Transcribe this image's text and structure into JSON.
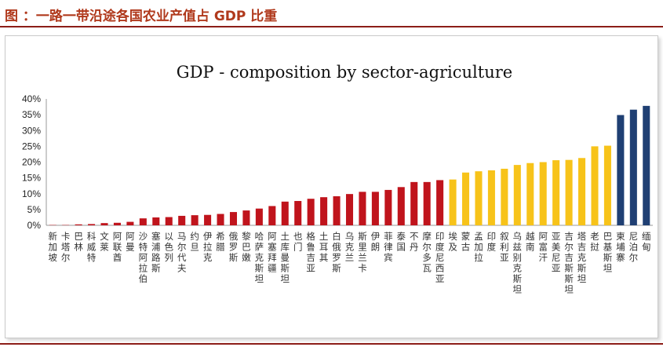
{
  "figure": {
    "caption": "图 ：一路一带沿途各国农业产值占 GDP 比重"
  },
  "colors": {
    "caption": "#b0391c",
    "rule": "#8c1d18",
    "group_red": "#c0141c",
    "group_yellow": "#f7c31a",
    "group_navy": "#1f3f73"
  },
  "chart_data": {
    "type": "bar",
    "title": "GDP - composition by sector-agriculture",
    "xlabel": "",
    "ylabel": "",
    "ylim": [
      0,
      40
    ],
    "yticks": [
      "0%",
      "5%",
      "10%",
      "15%",
      "20%",
      "25%",
      "30%",
      "35%",
      "40%"
    ],
    "grid": false,
    "legend": "none",
    "categories": [
      "新加坡",
      "卡塔尔",
      "巴林",
      "科威特",
      "文莱",
      "阿联酋",
      "阿曼",
      "沙特阿拉伯",
      "塞浦路斯",
      "以色列",
      "马尔代夫",
      "约旦",
      "伊拉克",
      "希腊",
      "俄罗斯",
      "黎巴嫩",
      "哈萨克斯坦",
      "阿塞拜疆",
      "土库曼斯坦",
      "也门",
      "格鲁吉亚",
      "土耳其",
      "白俄罗斯",
      "乌克兰",
      "斯里兰卡",
      "伊朗",
      "菲律宾",
      "泰国",
      "不丹",
      "摩尔多瓦",
      "印度尼西亚",
      "埃及",
      "蒙古",
      "孟加拉",
      "印度",
      "叙利亚",
      "乌兹别克斯坦",
      "越南",
      "阿富汗",
      "亚美尼亚",
      "吉尔吉斯斯坦",
      "塔吉克斯坦",
      "老挝",
      "巴基斯坦",
      "柬埔寨",
      "尼泊尔",
      "缅甸"
    ],
    "values": [
      0.1,
      0.1,
      0.3,
      0.4,
      0.7,
      0.8,
      1.1,
      2.2,
      2.5,
      2.6,
      3.0,
      3.2,
      3.3,
      3.6,
      4.2,
      4.7,
      5.3,
      6.1,
      7.5,
      7.7,
      8.4,
      8.9,
      9.2,
      9.9,
      10.6,
      10.6,
      11.2,
      12.1,
      13.7,
      13.7,
      14.3,
      14.5,
      16.7,
      17.1,
      17.4,
      17.9,
      19.1,
      19.7,
      20.0,
      20.6,
      20.7,
      21.3,
      25.0,
      25.2,
      34.9,
      36.6,
      37.8
    ],
    "groups": [
      "red",
      "red",
      "red",
      "red",
      "red",
      "red",
      "red",
      "red",
      "red",
      "red",
      "red",
      "red",
      "red",
      "red",
      "red",
      "red",
      "red",
      "red",
      "red",
      "red",
      "red",
      "red",
      "red",
      "red",
      "red",
      "red",
      "red",
      "red",
      "red",
      "red",
      "red",
      "yellow",
      "yellow",
      "yellow",
      "yellow",
      "yellow",
      "yellow",
      "yellow",
      "yellow",
      "yellow",
      "yellow",
      "yellow",
      "yellow",
      "yellow",
      "navy",
      "navy",
      "navy"
    ]
  }
}
